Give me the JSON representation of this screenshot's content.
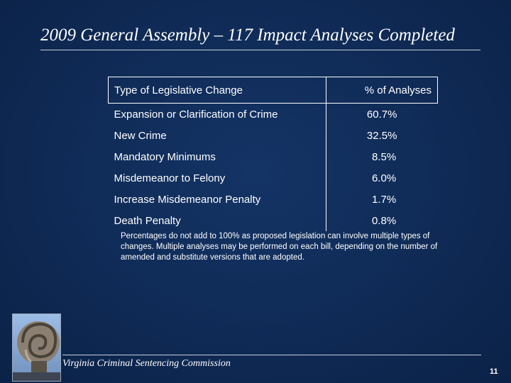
{
  "slide": {
    "title": "2009 General Assembly – 117 Impact Analyses Completed",
    "table": {
      "header": {
        "type": "Type of Legislative Change",
        "pct": "% of Analyses"
      },
      "rows": [
        {
          "type": "Expansion or Clarification of Crime",
          "pct": "60.7%"
        },
        {
          "type": "New Crime",
          "pct": "32.5%"
        },
        {
          "type": "Mandatory Minimums",
          "pct": "8.5%"
        },
        {
          "type": "Misdemeanor to Felony",
          "pct": "6.0%"
        },
        {
          "type": "Increase Misdemeanor Penalty",
          "pct": "1.7%"
        },
        {
          "type": "Death Penalty",
          "pct": "0.8%"
        }
      ]
    },
    "note": "Percentages do not add to 100% as proposed legislation can involve multiple types of changes. Multiple analyses may be performed on each bill, depending on the number of amended and substitute versions that are adopted.",
    "footer": "Virginia Criminal Sentencing Commission",
    "page_number": "11",
    "colors": {
      "background": "#0f2a55",
      "text": "#ffffff"
    }
  }
}
